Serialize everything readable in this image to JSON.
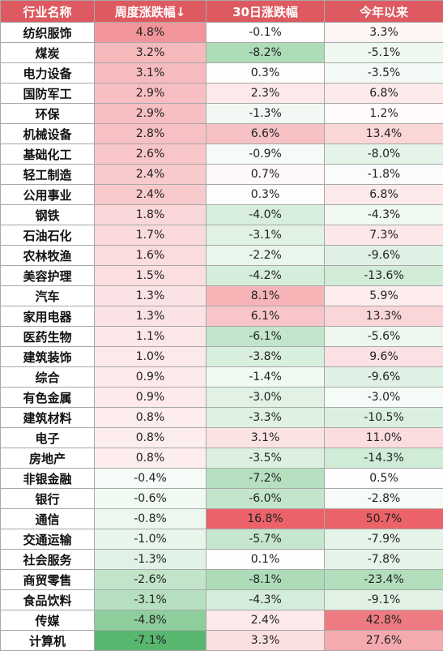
{
  "chart_data": {
    "type": "table",
    "columns": [
      "行业名称",
      "周度涨跌幅↓",
      "30日涨跌幅",
      "今年以来"
    ],
    "colors": {
      "header_bg": "#dc5a60",
      "positive": "#e8474f",
      "negative": "#3aaa55"
    },
    "rows": [
      {
        "name": "纺织服饰",
        "week": "4.8%",
        "d30": "-0.1%",
        "ytd": "3.3%"
      },
      {
        "name": "煤炭",
        "week": "3.2%",
        "d30": "-8.2%",
        "ytd": "-5.1%"
      },
      {
        "name": "电力设备",
        "week": "3.1%",
        "d30": "0.3%",
        "ytd": "-3.5%"
      },
      {
        "name": "国防军工",
        "week": "2.9%",
        "d30": "2.3%",
        "ytd": "6.8%"
      },
      {
        "name": "环保",
        "week": "2.9%",
        "d30": "-1.3%",
        "ytd": "1.2%"
      },
      {
        "name": "机械设备",
        "week": "2.8%",
        "d30": "6.6%",
        "ytd": "13.4%"
      },
      {
        "name": "基础化工",
        "week": "2.6%",
        "d30": "-0.9%",
        "ytd": "-8.0%"
      },
      {
        "name": "轻工制造",
        "week": "2.4%",
        "d30": "0.7%",
        "ytd": "-1.8%"
      },
      {
        "name": "公用事业",
        "week": "2.4%",
        "d30": "0.3%",
        "ytd": "6.8%"
      },
      {
        "name": "钢铁",
        "week": "1.8%",
        "d30": "-4.0%",
        "ytd": "-4.3%"
      },
      {
        "name": "石油石化",
        "week": "1.7%",
        "d30": "-3.1%",
        "ytd": "7.3%"
      },
      {
        "name": "农林牧渔",
        "week": "1.6%",
        "d30": "-2.2%",
        "ytd": "-9.6%"
      },
      {
        "name": "美容护理",
        "week": "1.5%",
        "d30": "-4.2%",
        "ytd": "-13.6%"
      },
      {
        "name": "汽车",
        "week": "1.3%",
        "d30": "8.1%",
        "ytd": "5.9%"
      },
      {
        "name": "家用电器",
        "week": "1.3%",
        "d30": "6.1%",
        "ytd": "13.3%"
      },
      {
        "name": "医药生物",
        "week": "1.1%",
        "d30": "-6.1%",
        "ytd": "-5.6%"
      },
      {
        "name": "建筑装饰",
        "week": "1.0%",
        "d30": "-3.8%",
        "ytd": "9.6%"
      },
      {
        "name": "综合",
        "week": "0.9%",
        "d30": "-1.4%",
        "ytd": "-9.6%"
      },
      {
        "name": "有色金属",
        "week": "0.9%",
        "d30": "-3.0%",
        "ytd": "-3.0%"
      },
      {
        "name": "建筑材料",
        "week": "0.8%",
        "d30": "-3.3%",
        "ytd": "-10.5%"
      },
      {
        "name": "电子",
        "week": "0.8%",
        "d30": "3.1%",
        "ytd": "11.0%"
      },
      {
        "name": "房地产",
        "week": "0.8%",
        "d30": "-3.5%",
        "ytd": "-14.3%"
      },
      {
        "name": "非银金融",
        "week": "-0.4%",
        "d30": "-7.2%",
        "ytd": "0.5%"
      },
      {
        "name": "银行",
        "week": "-0.6%",
        "d30": "-6.0%",
        "ytd": "-2.8%"
      },
      {
        "name": "通信",
        "week": "-0.8%",
        "d30": "16.8%",
        "ytd": "50.7%"
      },
      {
        "name": "交通运输",
        "week": "-1.0%",
        "d30": "-5.7%",
        "ytd": "-7.9%"
      },
      {
        "name": "社会服务",
        "week": "-1.3%",
        "d30": "0.1%",
        "ytd": "-7.8%"
      },
      {
        "name": "商贸零售",
        "week": "-2.6%",
        "d30": "-8.1%",
        "ytd": "-23.4%"
      },
      {
        "name": "食品饮料",
        "week": "-3.1%",
        "d30": "-4.3%",
        "ytd": "-9.1%"
      },
      {
        "name": "传媒",
        "week": "-4.8%",
        "d30": "2.4%",
        "ytd": "42.8%"
      },
      {
        "name": "计算机",
        "week": "-7.1%",
        "d30": "3.3%",
        "ytd": "27.6%"
      }
    ]
  }
}
